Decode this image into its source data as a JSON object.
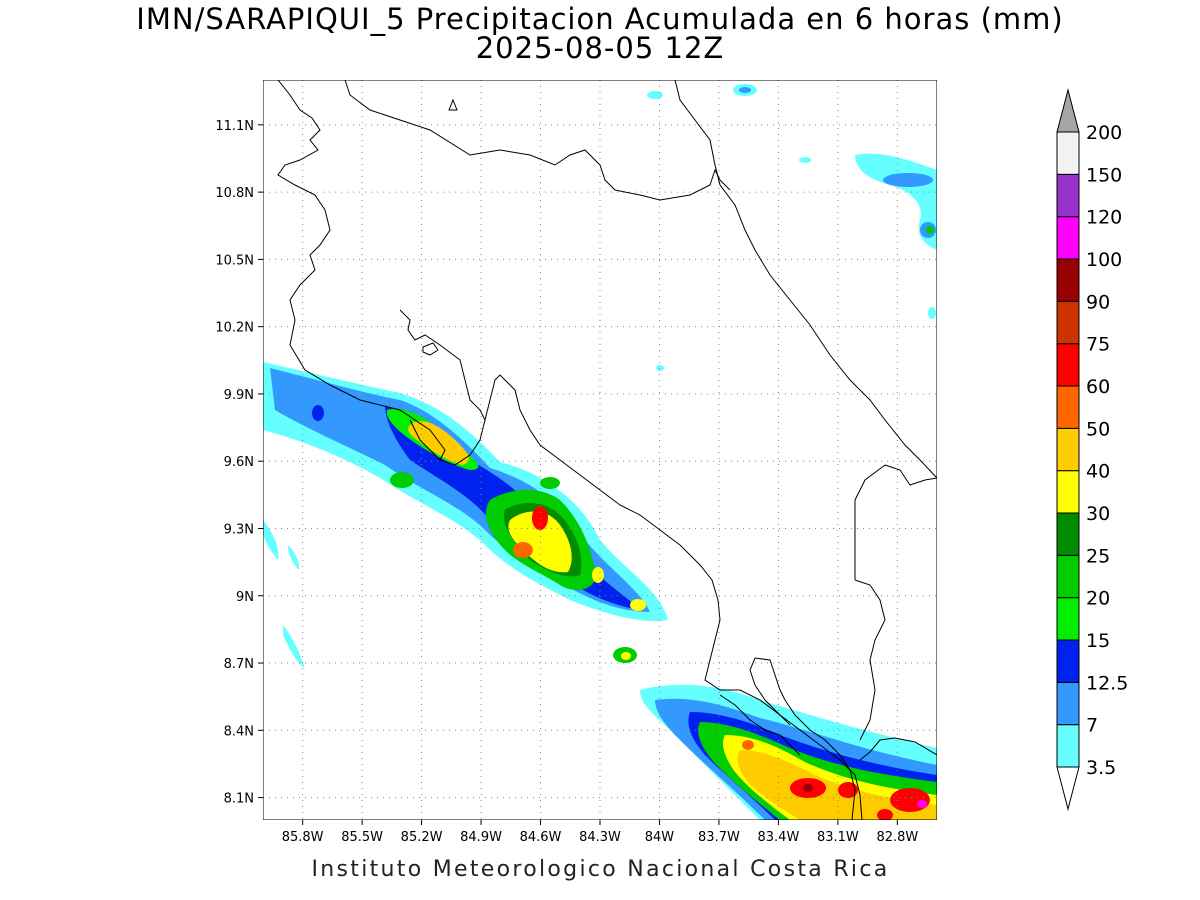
{
  "title_line1": "IMN/SARAPIQUI_5 Precipitacion Acumulada en 6 horas (mm)",
  "title_line2": "2025-08-05 12Z",
  "footer": "Instituto Meteorologico Nacional Costa Rica",
  "map": {
    "lon_range": [
      -86.0,
      -82.6
    ],
    "lat_range": [
      8.0,
      11.3
    ],
    "lon_ticks": [
      "85.8W",
      "85.5W",
      "85.2W",
      "84.9W",
      "84.6W",
      "84.3W",
      "84W",
      "83.7W",
      "83.4W",
      "83.1W",
      "82.8W"
    ],
    "lat_ticks": [
      "11.1N",
      "10.8N",
      "10.5N",
      "10.2N",
      "9.9N",
      "9.6N",
      "9.3N",
      "9N",
      "8.7N",
      "8.4N",
      "8.1N"
    ],
    "grid": true
  },
  "colorbar": {
    "labels": [
      "3.5",
      "7",
      "12.5",
      "15",
      "20",
      "25",
      "30",
      "40",
      "50",
      "60",
      "75",
      "90",
      "100",
      "120",
      "150",
      "200"
    ],
    "colors": [
      "#66ffff",
      "#3399ff",
      "#0022ee",
      "#00ee00",
      "#00cc00",
      "#008c00",
      "#ffff00",
      "#ffcc00",
      "#ff6600",
      "#ff0000",
      "#cc3300",
      "#990000",
      "#ff00ff",
      "#9933cc",
      "#f2f2f2",
      "#a6a6a6"
    ],
    "upper_arrow_color": "#a6a6a6",
    "lower_arrow_color": "#ffffff"
  }
}
